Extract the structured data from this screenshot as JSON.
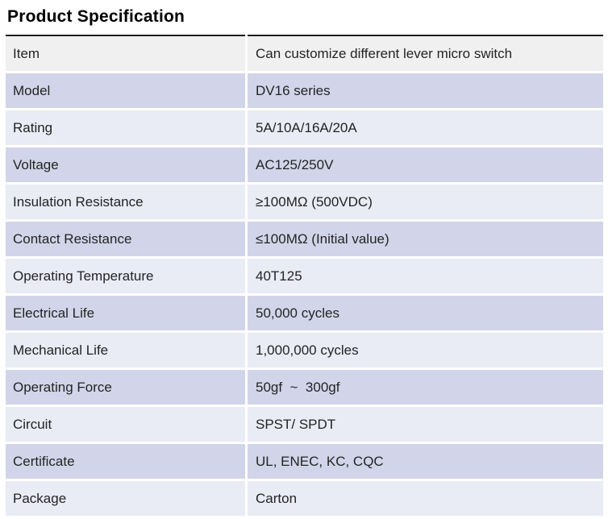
{
  "page": {
    "title": "Product Specification"
  },
  "table": {
    "header": {
      "label": "Item",
      "value": "Can customize different lever micro switch"
    },
    "rows": [
      {
        "label": "Model",
        "value": "DV16 series"
      },
      {
        "label": "Rating",
        "value": "5A/10A/16A/20A"
      },
      {
        "label": "Voltage",
        "value": "AC125/250V"
      },
      {
        "label": "Insulation Resistance",
        "value": "≥100MΩ (500VDC)"
      },
      {
        "label": "Contact Resistance",
        "value": "≤100MΩ (Initial value)"
      },
      {
        "label": "Operating Temperature",
        "value": "40T125"
      },
      {
        "label": "Electrical Life",
        "value": "50,000 cycles"
      },
      {
        "label": "Mechanical Life",
        "value": "1,000,000 cycles"
      },
      {
        "label": "Operating Force",
        "value": "50gf  ~  300gf"
      },
      {
        "label": "Circuit",
        "value": "SPST/ SPDT"
      },
      {
        "label": "Certificate",
        "value": "UL, ENEC, KC, CQC"
      },
      {
        "label": "Package",
        "value": "Carton"
      }
    ],
    "colors": {
      "header_bg": "#f0f0f0",
      "row_periwinkle_bg": "#d2d5e9",
      "row_pale_bg": "#e9ebf5",
      "title_rule": "#1b1b1b",
      "text": "#242424"
    }
  }
}
